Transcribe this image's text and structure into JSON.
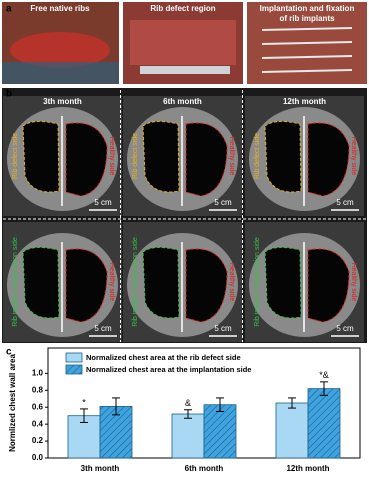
{
  "panel_a": {
    "label": "a",
    "photos": [
      {
        "title_lines": [
          "Free native ribs"
        ]
      },
      {
        "title_lines": [
          "Rib defect region"
        ]
      },
      {
        "title_lines": [
          "Implantation and fixation",
          "of rib implants"
        ]
      }
    ]
  },
  "panel_b": {
    "label": "b",
    "columns": [
      "3th month",
      "6th month",
      "12th month"
    ],
    "top_row": {
      "left_side": "Rib defect side",
      "right_side": "Healthy side"
    },
    "bottom_row": {
      "left_side": "Rib implant implantation side",
      "right_side": "Healthy side"
    },
    "scale": "5 cm"
  },
  "chart_data": {
    "type": "bar",
    "panel_label": "c",
    "y_label": "Normlized chest wall area",
    "categories": [
      "3th month",
      "6th month",
      "12th month"
    ],
    "series": [
      {
        "name": "Normalized chest area at the rib defect side",
        "color": "#a8d8f4",
        "hatch": false,
        "values": [
          0.5,
          0.52,
          0.65
        ],
        "errors": [
          0.08,
          0.05,
          0.06
        ],
        "annotations": [
          "*",
          "&",
          null
        ]
      },
      {
        "name": "Normalized chest area at the implantation side",
        "color": "#3fa3df",
        "hatch": true,
        "values": [
          0.61,
          0.63,
          0.82
        ],
        "errors": [
          0.1,
          0.08,
          0.08
        ],
        "annotations": [
          null,
          null,
          "*&"
        ]
      }
    ],
    "ylim": [
      0,
      1.3
    ],
    "yticks": [
      {
        "value": 0,
        "label": "0.0"
      },
      {
        "value": 0.2,
        "label": "0.2"
      },
      {
        "value": 0.4,
        "label": "0.4"
      },
      {
        "value": 0.6,
        "label": "0.6"
      },
      {
        "value": 0.8,
        "label": "0.8"
      },
      {
        "value": 1.0,
        "label": "1.0"
      }
    ],
    "legend": "upper-left"
  }
}
